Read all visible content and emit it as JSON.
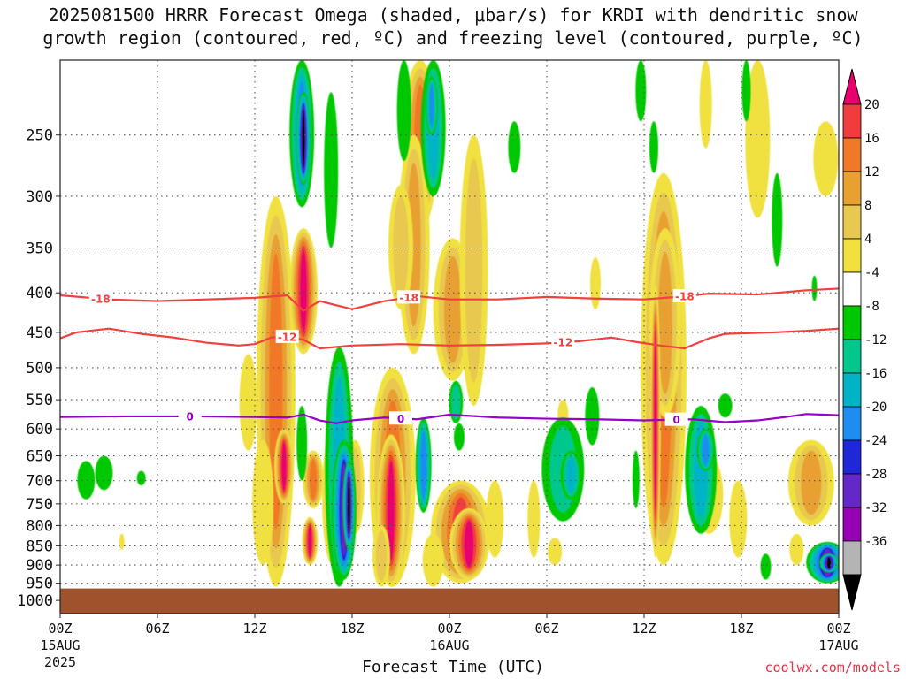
{
  "header": {
    "title_line1": "2025081500 HRRR Forecast Omega (shaded, μbar/s) for KRDI with dendritic snow",
    "title_line2": "growth region (contoured, red, ºC) and freezing level (contoured, purple, ºC)"
  },
  "footer": {
    "credit": "coolwx.com/models"
  },
  "chart_data": {
    "type": "heatmap",
    "title": "2025081500 HRRR Forecast Omega (shaded, μbar/s) for KRDI with dendritic snow growth region (contoured, red, ºC) and freezing level (contoured, purple, ºC)",
    "xlabel": "Forecast Time (UTC)",
    "ylabel": "",
    "x_ticks": [
      {
        "hour": 0,
        "label": "00Z",
        "sub1": "15AUG",
        "sub2": "2025"
      },
      {
        "hour": 6,
        "label": "06Z"
      },
      {
        "hour": 12,
        "label": "12Z"
      },
      {
        "hour": 18,
        "label": "18Z"
      },
      {
        "hour": 24,
        "label": "00Z",
        "sub1": "16AUG"
      },
      {
        "hour": 30,
        "label": "06Z"
      },
      {
        "hour": 36,
        "label": "12Z"
      },
      {
        "hour": 42,
        "label": "18Z"
      },
      {
        "hour": 48,
        "label": "00Z",
        "sub1": "17AUG"
      }
    ],
    "xlim": [
      0,
      48
    ],
    "y_ticks": [
      250,
      300,
      350,
      400,
      450,
      500,
      550,
      600,
      650,
      700,
      750,
      800,
      850,
      900,
      950,
      1000
    ],
    "ylim_hpa": [
      200,
      1040
    ],
    "y_scale": "log",
    "grid": true,
    "surface_hpa": 965,
    "colorbar": {
      "labels": [
        "20",
        "16",
        "12",
        "8",
        "4",
        "-4",
        "-8",
        "-12",
        "-16",
        "-20",
        "-24",
        "-28",
        "-32",
        "-36"
      ],
      "colors": [
        "#e8006e",
        "#f03c3c",
        "#f07828",
        "#e8a030",
        "#e8c850",
        "#f0e040",
        "#ffffff",
        "#00c800",
        "#00c88c",
        "#00b4c8",
        "#1e8cf0",
        "#1e28d8",
        "#6428c8",
        "#9600b4",
        "#b4b4b4",
        "#000000"
      ]
    },
    "contours": [
      {
        "name": "-18",
        "color": "#f04040",
        "label_hours": [
          2.5,
          21.5,
          38.5
        ],
        "points": [
          [
            0,
            403
          ],
          [
            3,
            408
          ],
          [
            6,
            410
          ],
          [
            9,
            408
          ],
          [
            12,
            406
          ],
          [
            14,
            403
          ],
          [
            15,
            422
          ],
          [
            16,
            410
          ],
          [
            18,
            420
          ],
          [
            20,
            410
          ],
          [
            22,
            404
          ],
          [
            24,
            408
          ],
          [
            27,
            408
          ],
          [
            30,
            405
          ],
          [
            33,
            407
          ],
          [
            36,
            408
          ],
          [
            38,
            405
          ],
          [
            40,
            401
          ],
          [
            43,
            402
          ],
          [
            46,
            397
          ],
          [
            48,
            395
          ]
        ]
      },
      {
        "name": "-12",
        "color": "#f04040",
        "label_hours": [
          14,
          31
        ],
        "points": [
          [
            0,
            458
          ],
          [
            1,
            450
          ],
          [
            3,
            445
          ],
          [
            5,
            452
          ],
          [
            7,
            457
          ],
          [
            9,
            464
          ],
          [
            11,
            468
          ],
          [
            12,
            466
          ],
          [
            13,
            457
          ],
          [
            14,
            456
          ],
          [
            15,
            460
          ],
          [
            16,
            472
          ],
          [
            18,
            468
          ],
          [
            21,
            466
          ],
          [
            24,
            468
          ],
          [
            27,
            467
          ],
          [
            30,
            465
          ],
          [
            32,
            462
          ],
          [
            34,
            457
          ],
          [
            35.5,
            463
          ],
          [
            37,
            468
          ],
          [
            38.5,
            472
          ],
          [
            40,
            458
          ],
          [
            41,
            452
          ],
          [
            44,
            450
          ],
          [
            46,
            448
          ],
          [
            48,
            445
          ]
        ]
      },
      {
        "name": "0",
        "color": "#9600c8",
        "label_hours": [
          8,
          21,
          38
        ],
        "points": [
          [
            0,
            579
          ],
          [
            4,
            578
          ],
          [
            8,
            578
          ],
          [
            12,
            579
          ],
          [
            14,
            580
          ],
          [
            15,
            575
          ],
          [
            16,
            585
          ],
          [
            17,
            590
          ],
          [
            18,
            585
          ],
          [
            20,
            580
          ],
          [
            22,
            583
          ],
          [
            24,
            575
          ],
          [
            27,
            580
          ],
          [
            30,
            582
          ],
          [
            33,
            583
          ],
          [
            36,
            585
          ],
          [
            39,
            583
          ],
          [
            41,
            588
          ],
          [
            43,
            585
          ],
          [
            45,
            578
          ],
          [
            46,
            574
          ],
          [
            48,
            576
          ]
        ]
      }
    ]
  }
}
